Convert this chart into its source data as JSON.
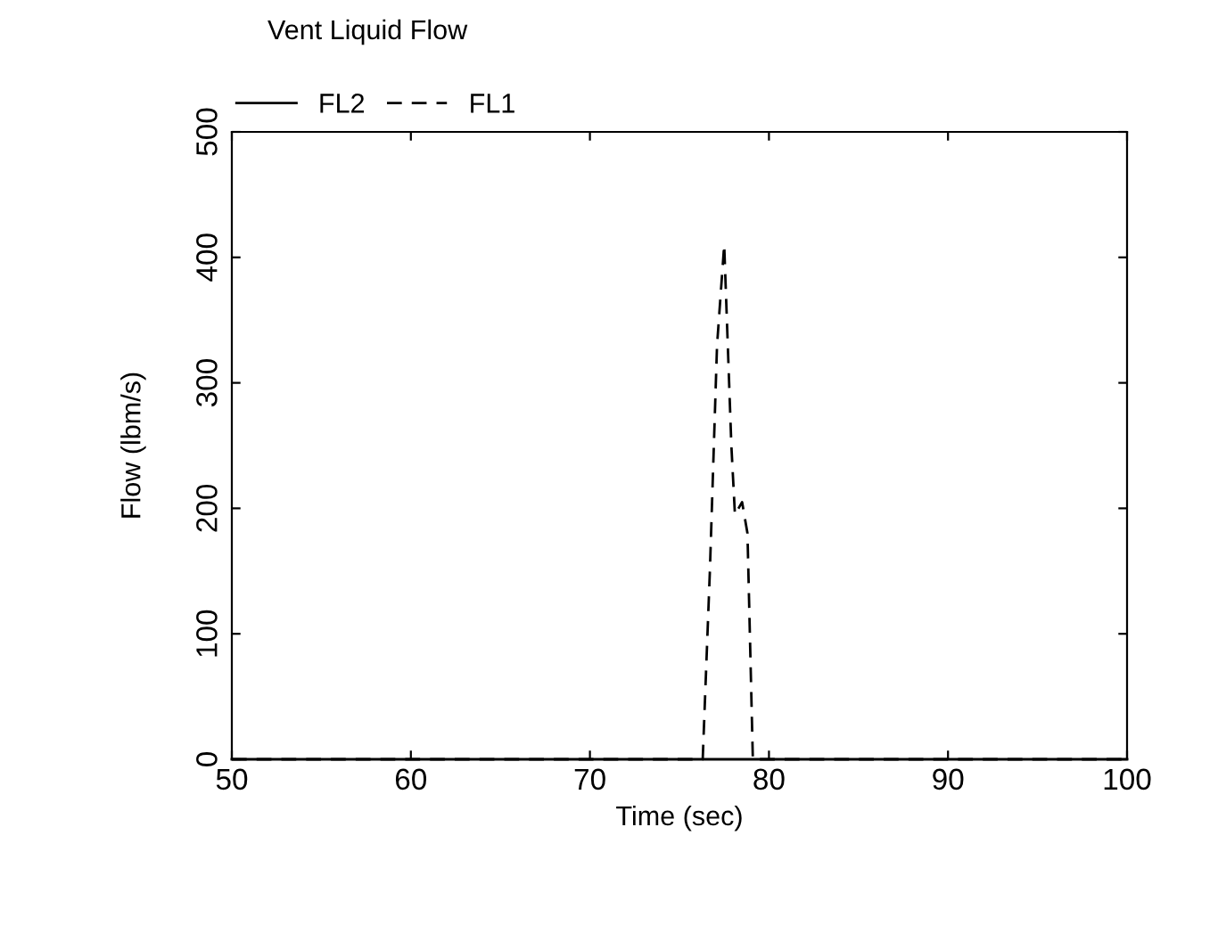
{
  "chart_data": {
    "type": "line",
    "title": "Vent Liquid Flow",
    "xlabel": "Time (sec)",
    "ylabel": "Flow (lbm/s)",
    "xlim": [
      50,
      100
    ],
    "ylim": [
      0,
      500
    ],
    "xticks": [
      50,
      60,
      70,
      80,
      90,
      100
    ],
    "yticks": [
      0,
      100,
      200,
      300,
      400,
      500
    ],
    "grid": false,
    "legend": "top left",
    "marker": "none",
    "series": [
      {
        "name": "FL2",
        "color": "#000000",
        "line_style": "solid",
        "x": [
          50,
          100
        ],
        "values": [
          0,
          0
        ]
      },
      {
        "name": "FL1",
        "color": "#000000",
        "line_style": "dashed",
        "x": [
          50,
          76.3,
          76.7,
          77.1,
          77.5,
          77.9,
          78.1,
          78.3,
          78.5,
          78.8,
          79.1,
          100
        ],
        "values": [
          0,
          0,
          150,
          330,
          410,
          250,
          195,
          200,
          205,
          180,
          0,
          0
        ]
      }
    ]
  }
}
